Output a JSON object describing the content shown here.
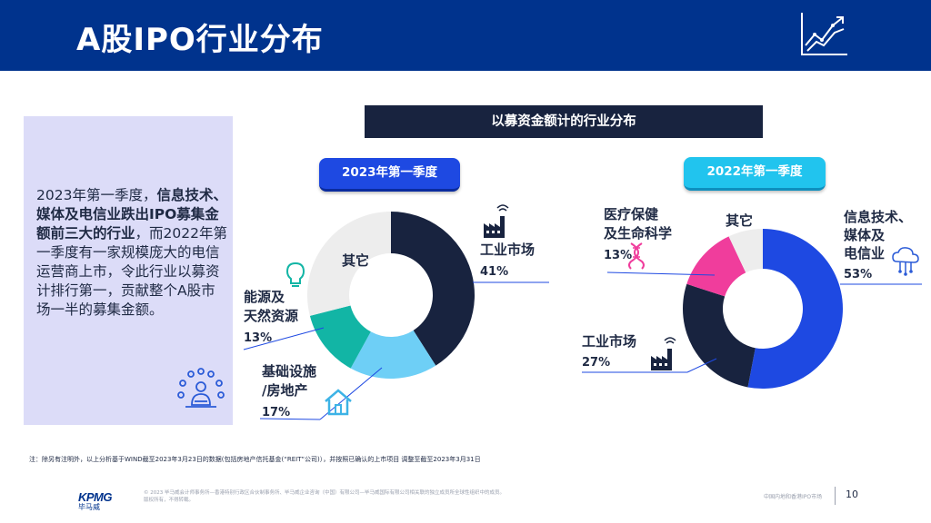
{
  "header": {
    "title": "A股IPO行业分布",
    "icon": "chart-growth-icon"
  },
  "summary": {
    "p1": "2023年第一季度，",
    "b1": "信息技术、媒体及电信业跌出IPO募集金额前三大的行业",
    "p2": "，而2022年第一季度有一家规模庞大的电信运营商上市，令此行业以募资计排行第一，贡献整个A股市场一半的募集金额。",
    "icon": "people-network-icon"
  },
  "banner": "以募资金额计的行业分布",
  "colors": {
    "navy": "#18233F",
    "blue": "#1E49E2",
    "light_blue": "#6ECFF6",
    "teal": "#12B5A5",
    "pink": "#F03D9C",
    "grey": "#EDEDED"
  },
  "chart_data": [
    {
      "type": "pie",
      "title": "2023年第一季度",
      "slices": [
        {
          "label": "工业市场",
          "value": 41,
          "display": "41%",
          "color": "#18233F",
          "icon": "factory-icon"
        },
        {
          "label": "基础设施/房地产",
          "value": 17,
          "display": "17%",
          "color": "#6ECFF6",
          "icon": "house-icon"
        },
        {
          "label": "能源及天然资源",
          "value": 13,
          "display": "13%",
          "color": "#12B5A5",
          "icon": "lightbulb-icon"
        },
        {
          "label": "其它",
          "value": 29,
          "display": "",
          "color": "#EDEDED"
        }
      ]
    },
    {
      "type": "pie",
      "title": "2022年第一季度",
      "slices": [
        {
          "label": "信息技术、媒体及电信业",
          "value": 53,
          "display": "53%",
          "color": "#1E49E2",
          "icon": "cloud-network-icon"
        },
        {
          "label": "工业市场",
          "value": 27,
          "display": "27%",
          "color": "#18233F",
          "icon": "factory-icon"
        },
        {
          "label": "医疗保健及生命科学",
          "value": 13,
          "display": "13%",
          "color": "#F03D9C",
          "icon": "dna-icon"
        },
        {
          "label": "其它",
          "value": 7,
          "display": "",
          "color": "#EDEDED"
        }
      ]
    }
  ],
  "labels": {
    "c1_ind": [
      "工业市场"
    ],
    "c1_ind_pct": "41%",
    "c1_infra": [
      "基础设施",
      "/房地产"
    ],
    "c1_infra_pct": "17%",
    "c1_energy": [
      "能源及",
      "天然资源"
    ],
    "c1_energy_pct": "13%",
    "c1_other": "其它",
    "c2_tmt": [
      "信息技术、",
      "媒体及",
      "电信业"
    ],
    "c2_tmt_pct": "53%",
    "c2_ind": [
      "工业市场"
    ],
    "c2_ind_pct": "27%",
    "c2_health": [
      "医疗保健",
      "及生命科学"
    ],
    "c2_health_pct": "13%",
    "c2_other": "其它"
  },
  "footnote": "注：除另有注明外，以上分析基于WIND截至2023年3月23日的数据(包括房地产信托基金(“REIT”公司)），并按照已确认的上市项目 调整至截至2023年3月31日",
  "footer": {
    "logo": "KPMG",
    "logo_cn": "毕马威",
    "legal": "© 2023 毕马威会计师事务所—香港特别行政区合伙制事务所、毕马威企业咨询（中国）有限公司—毕马威国际有限公司相关联的独立成员所全球性组织中的成员。版权所有，不得转载。",
    "right_text": "中国内地和香港IPO市场",
    "page": "10"
  }
}
